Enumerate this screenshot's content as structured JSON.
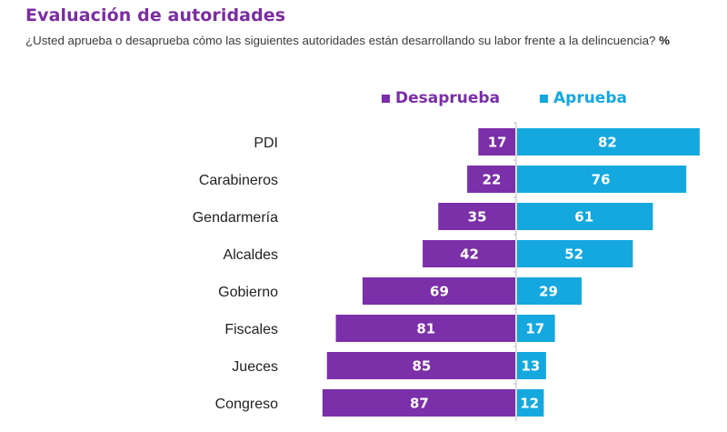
{
  "title": "Evaluación de autoridades",
  "subtitle": "¿Usted aprueba o desaprueba cómo las siguientes autoridades están desarrollando su labor frente a la delincuencia?",
  "subtitle_unit": "%",
  "colors": {
    "desaprueba": "#7b2fa8",
    "aprueba": "#14a8df",
    "title": "#7b2da0"
  },
  "chart_data": {
    "type": "bar",
    "orientation": "horizontal-diverging",
    "title": "Evaluación de autoridades",
    "subtitle": "¿Usted aprueba o desaprueba cómo las siguientes autoridades están desarrollando su labor frente a la delincuencia? %",
    "categories": [
      "PDI",
      "Carabineros",
      "Gendarmería",
      "Alcaldes",
      "Gobierno",
      "Fiscales",
      "Jueces",
      "Congreso"
    ],
    "series": [
      {
        "name": "Desaprueba",
        "color": "#7b2fa8",
        "values": [
          17,
          22,
          35,
          42,
          69,
          81,
          85,
          87
        ]
      },
      {
        "name": "Aprueba",
        "color": "#14a8df",
        "values": [
          82,
          76,
          61,
          52,
          29,
          17,
          13,
          12
        ]
      }
    ],
    "xlabel": "",
    "ylabel": "",
    "unit": "%",
    "legend": "top",
    "grid": false
  }
}
